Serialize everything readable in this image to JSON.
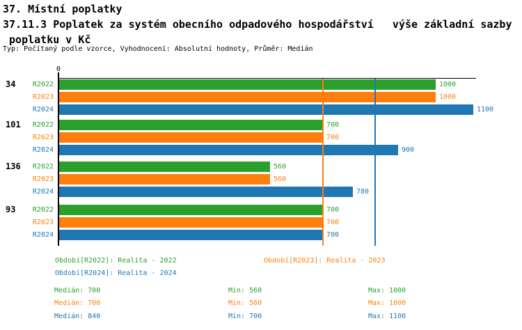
{
  "header": {
    "title": "37. Místní poplatky",
    "subtitle_line1": "37.11.3 Poplatek za systém obecního odpadového hospodářství   výše základní sazby",
    "subtitle_line2": " poplatku v Kč",
    "meta": "Typ: Počítaný podle vzorce, Vyhodnocení: Absolutní hodnoty, Průměr: Medián"
  },
  "colors": {
    "axis": "#000000",
    "background": "#ffffff",
    "series_green": "#2ca02c",
    "series_orange": "#ff7f0e",
    "series_blue": "#1f77b4"
  },
  "stats_labels": {
    "median": "Medián:",
    "min": "Min:",
    "max": "Max:"
  },
  "chart_data": {
    "type": "bar",
    "orientation": "horizontal",
    "title": "37.11.3 Poplatek za systém obecního odpadového hospodářství   výše základní sazby poplatku v Kč",
    "xlabel": "",
    "ylabel": "",
    "xlim": [
      0,
      1100
    ],
    "axis_tick_labels": [
      "0"
    ],
    "grid": false,
    "legend_position": "bottom",
    "categories": [
      "34",
      "101",
      "136",
      "93"
    ],
    "series": [
      {
        "name": "R2022",
        "legend_label": "Období[R2022]: Realita - 2022",
        "color": "#2ca02c",
        "values": [
          1000,
          700,
          560,
          700
        ],
        "median": 700,
        "min": 560,
        "max": 1000
      },
      {
        "name": "R2023",
        "legend_label": "Období[R2023]: Realita - 2023",
        "color": "#ff7f0e",
        "values": [
          1000,
          700,
          560,
          700
        ],
        "median": 700,
        "min": 560,
        "max": 1000
      },
      {
        "name": "R2024",
        "legend_label": "Období[R2024]: Realita - 2024",
        "color": "#1f77b4",
        "values": [
          1100,
          900,
          780,
          700
        ],
        "median": 840,
        "min": 700,
        "max": 1100
      }
    ],
    "reference_lines": [
      {
        "series": "R2023",
        "value": 700,
        "color": "#ff7f0e"
      },
      {
        "series": "R2024",
        "value": 840,
        "color": "#1f77b4"
      }
    ]
  }
}
